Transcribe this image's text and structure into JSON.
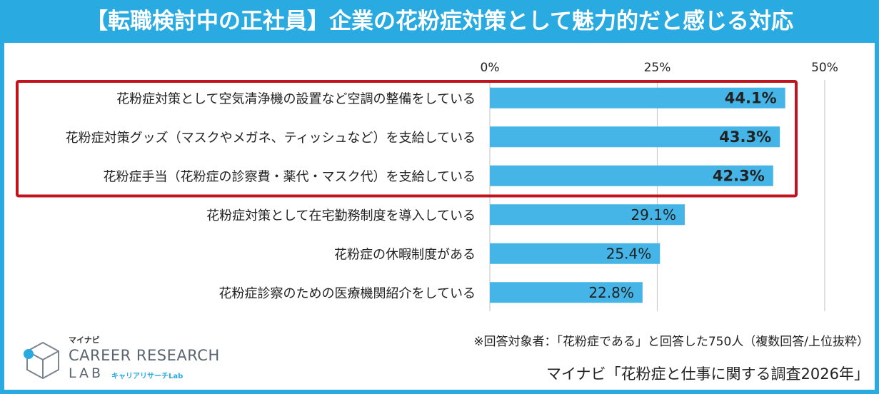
{
  "colors": {
    "accent": "#29aae1",
    "bar": "#45b4e6",
    "highlight_border": "#c0151e",
    "grid": "#cccccc",
    "text": "#222222"
  },
  "chart_data": {
    "type": "bar",
    "orientation": "horizontal",
    "title": "【転職検討中の正社員】企業の花粉症対策として魅力的だと感じる対応",
    "categories": [
      "花粉症対策として空気清浄機の設置など空調の整備をしている",
      "花粉症対策グッズ（マスクやメガネ、ティッシュなど）を支給している",
      "花粉症手当（花粉症の診察費・薬代・マスク代）を支給している",
      "花粉症対策として在宅勤務制度を導入している",
      "花粉症の休暇制度がある",
      "花粉症診察のための医療機関紹介をしている"
    ],
    "values": [
      44.1,
      43.3,
      42.3,
      29.1,
      25.4,
      22.8
    ],
    "value_labels": [
      "44.1%",
      "43.3%",
      "42.3%",
      "29.1%",
      "25.4%",
      "22.8%"
    ],
    "highlighted_count": 3,
    "xlim": [
      0,
      50
    ],
    "ticks": [
      0,
      25,
      50
    ],
    "tick_labels": [
      "0%",
      "25%",
      "50%"
    ],
    "grid": true
  },
  "footer": {
    "note": "※回答対象者：「花粉症である」と回答した750人（複数回答/上位抜粋）",
    "source": "マイナビ「花粉症と仕事に関する調査2026年」"
  },
  "logo": {
    "brand": "マイナビ",
    "line1": "CAREER RESEARCH",
    "line2": "LAB",
    "sub": "キャリアリサーチLab",
    "icon": "cube-logo-icon"
  }
}
